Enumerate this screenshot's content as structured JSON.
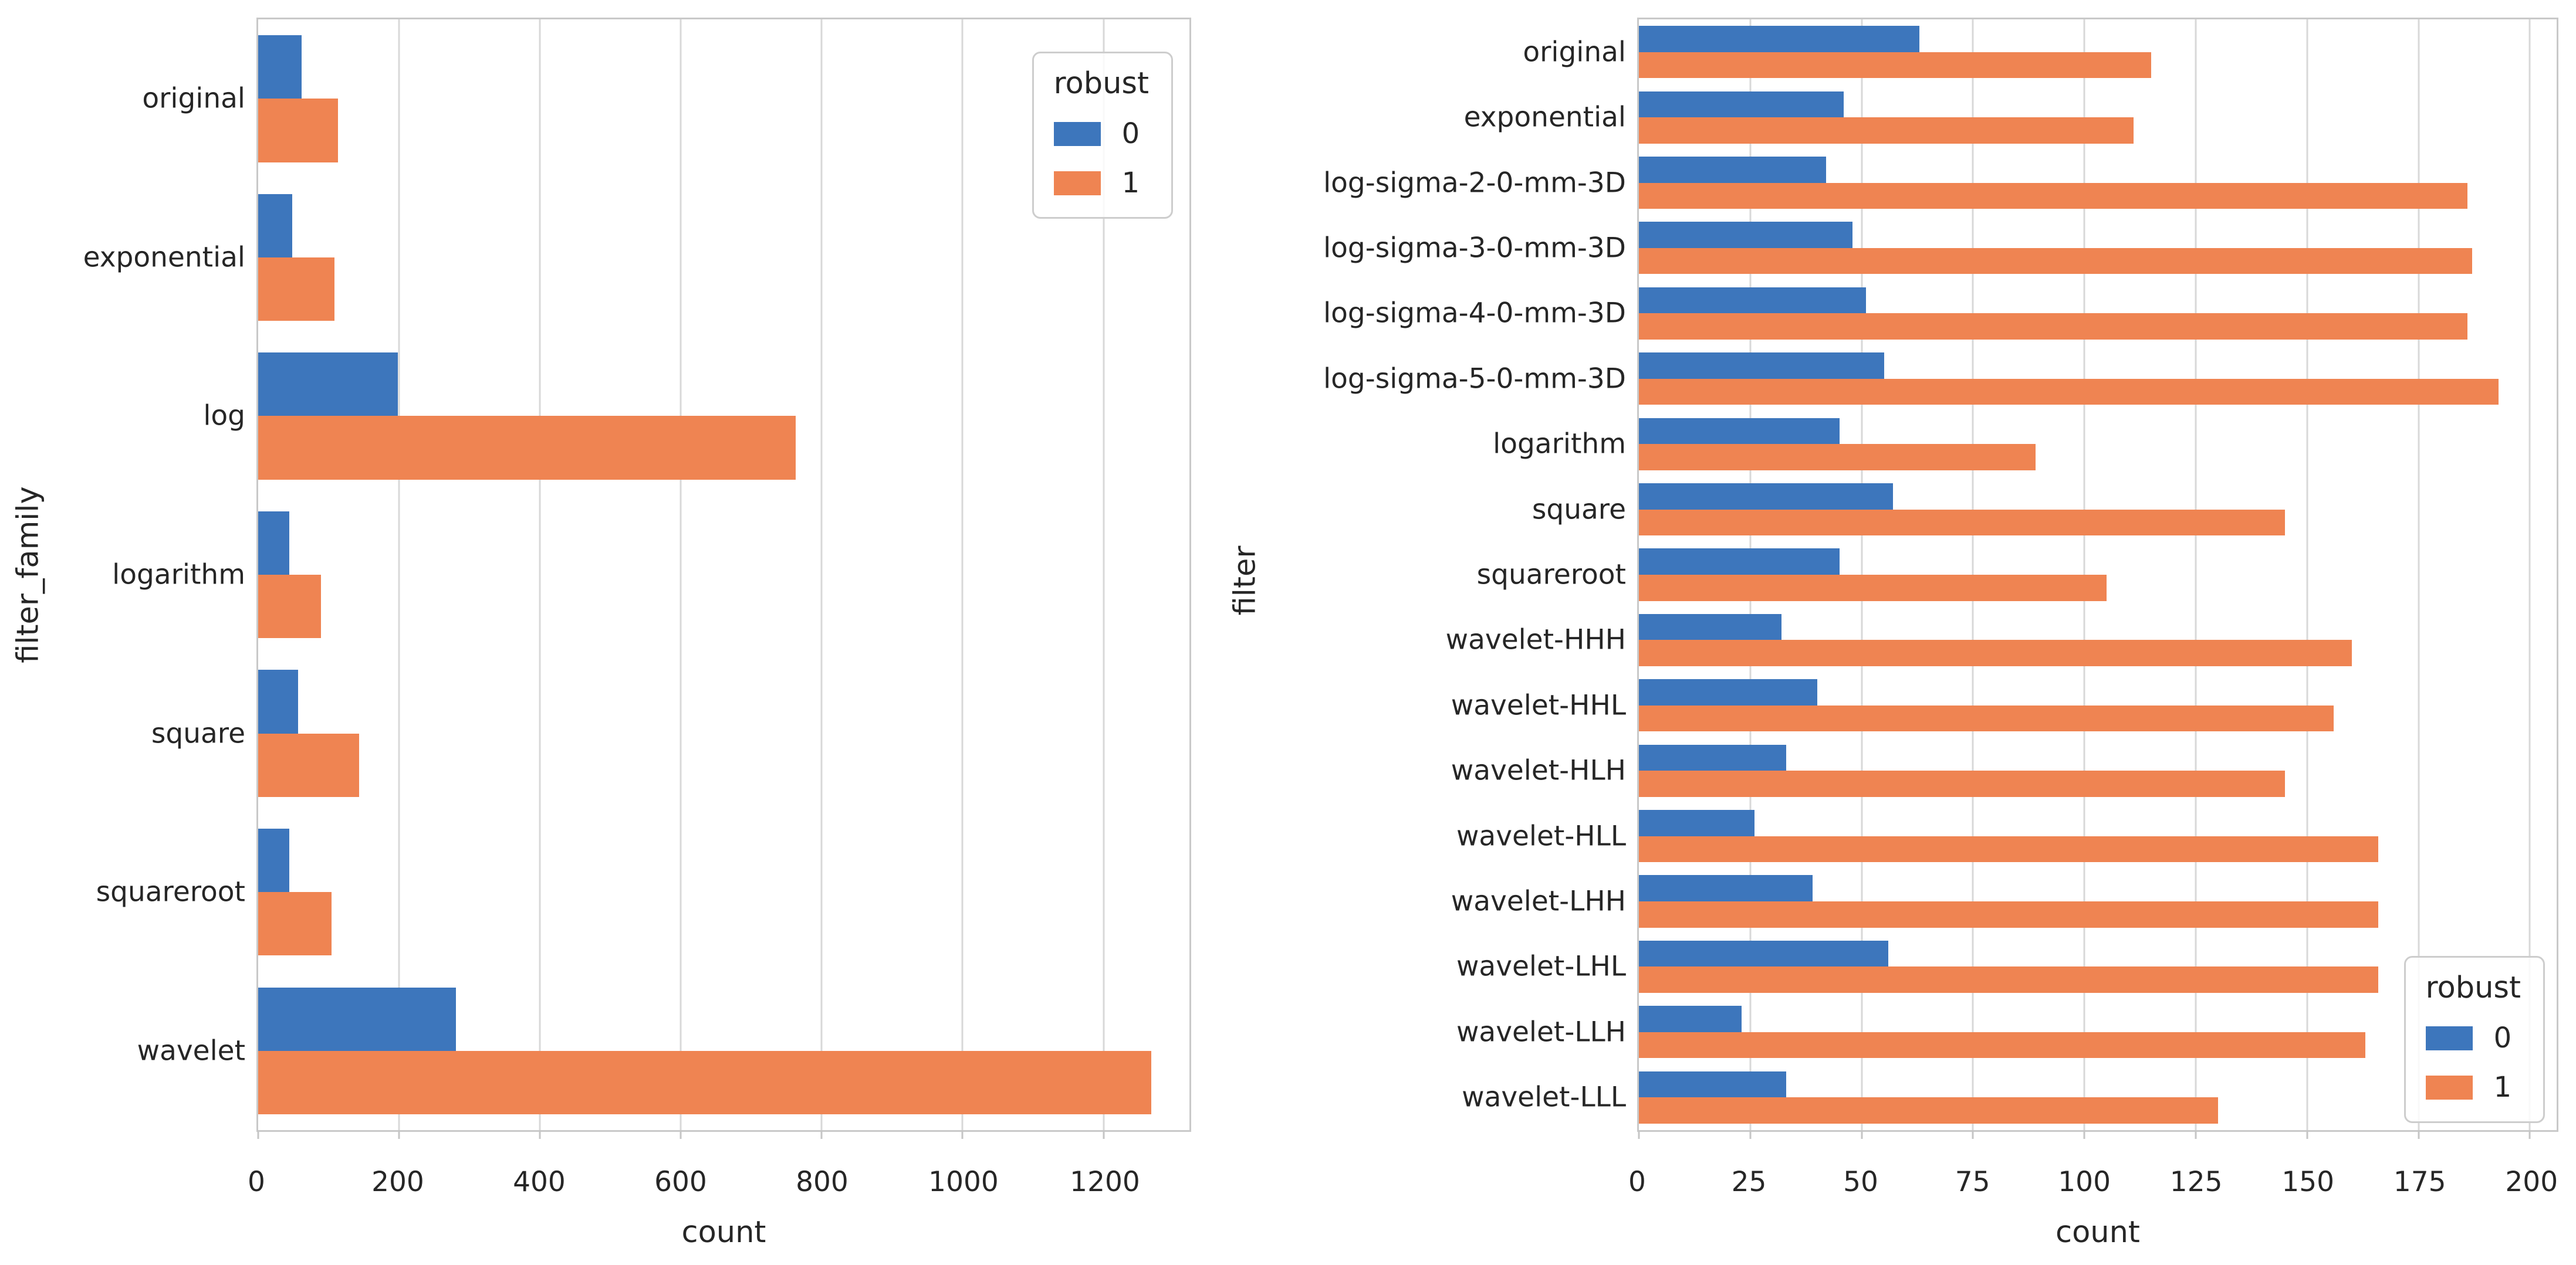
{
  "figure": {
    "background": "#ffffff",
    "text_color": "#262626",
    "grid_color": "#d8d8d8"
  },
  "palette": {
    "robust_0": "#3D76BC",
    "robust_1": "#EF8452"
  },
  "chart_data": [
    {
      "type": "bar",
      "orientation": "horizontal",
      "xlabel": "count",
      "ylabel": "filter_family",
      "grid": "vertical",
      "categories": [
        "original",
        "exponential",
        "log",
        "logarithm",
        "square",
        "squareroot",
        "wavelet"
      ],
      "series": [
        {
          "name": "0",
          "color": "#3D76BC",
          "values": [
            62,
            48,
            198,
            44,
            57,
            44,
            281
          ]
        },
        {
          "name": "1",
          "color": "#EF8452",
          "values": [
            113,
            108,
            763,
            89,
            143,
            104,
            1268
          ]
        }
      ],
      "xlim": [
        0,
        1322
      ],
      "xticks": [
        0,
        200,
        400,
        600,
        800,
        1000,
        1200
      ],
      "legend": {
        "title": "robust",
        "entries": [
          "0",
          "1"
        ],
        "position": "top-right"
      }
    },
    {
      "type": "bar",
      "orientation": "horizontal",
      "xlabel": "count",
      "ylabel": "filter",
      "grid": "vertical",
      "categories": [
        "original",
        "exponential",
        "log-sigma-2-0-mm-3D",
        "log-sigma-3-0-mm-3D",
        "log-sigma-4-0-mm-3D",
        "log-sigma-5-0-mm-3D",
        "logarithm",
        "square",
        "squareroot",
        "wavelet-HHH",
        "wavelet-HHL",
        "wavelet-HLH",
        "wavelet-HLL",
        "wavelet-LHH",
        "wavelet-LHL",
        "wavelet-LLH",
        "wavelet-LLL"
      ],
      "series": [
        {
          "name": "0",
          "color": "#3D76BC",
          "values": [
            63,
            46,
            42,
            48,
            51,
            55,
            45,
            57,
            45,
            32,
            40,
            33,
            26,
            39,
            56,
            23,
            33
          ]
        },
        {
          "name": "1",
          "color": "#EF8452",
          "values": [
            115,
            111,
            186,
            187,
            186,
            193,
            89,
            145,
            105,
            160,
            156,
            145,
            166,
            166,
            166,
            163,
            130
          ]
        }
      ],
      "xlim": [
        0,
        206
      ],
      "xticks": [
        0,
        25,
        50,
        75,
        100,
        125,
        150,
        175,
        200
      ],
      "legend": {
        "title": "robust",
        "entries": [
          "0",
          "1"
        ],
        "position": "bottom-right"
      }
    }
  ]
}
